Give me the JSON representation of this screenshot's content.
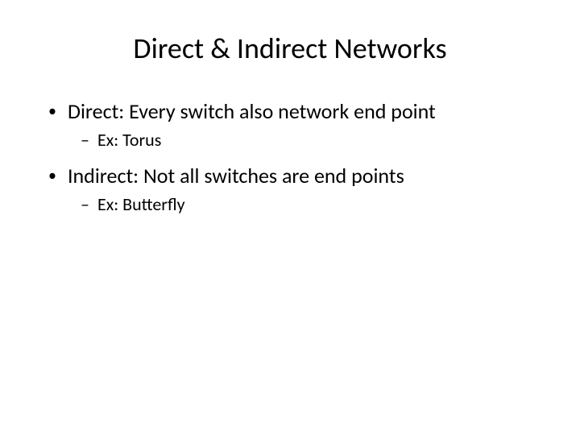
{
  "slide": {
    "title": "Direct & Indirect Networks",
    "bullets": [
      {
        "level": 1,
        "text": "Direct: Every switch also network end point"
      },
      {
        "level": 2,
        "text": "Ex: Torus"
      },
      {
        "level": 1,
        "text": "Indirect: Not all switches are end points"
      },
      {
        "level": 2,
        "text": "Ex: Butterfly"
      }
    ],
    "style": {
      "background_color": "#ffffff",
      "text_color": "#000000",
      "font_family": "Calibri",
      "title_fontsize": 36,
      "l1_fontsize": 26,
      "l2_fontsize": 22,
      "l1_marker": "•",
      "l2_marker": "–"
    }
  }
}
